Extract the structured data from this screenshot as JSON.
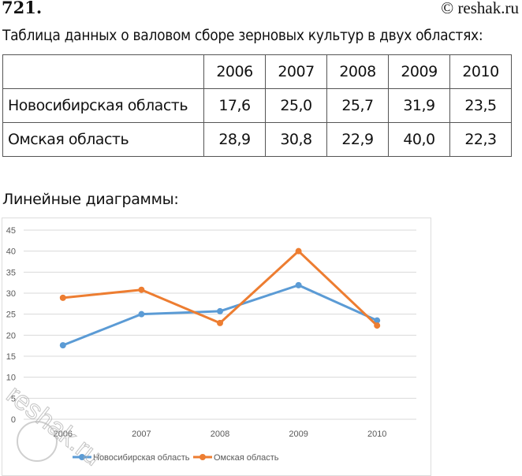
{
  "header": {
    "problem_number": "721",
    "copyright": "© reshak.ru"
  },
  "table_title": "Таблица данных о валовом сборе зерновых культур в двух областях:",
  "table": {
    "columns": [
      "2006",
      "2007",
      "2008",
      "2009",
      "2010"
    ],
    "rows": [
      {
        "label": "Новосибирская область",
        "values": [
          "17,6",
          "25,0",
          "25,7",
          "31,9",
          "23,5"
        ]
      },
      {
        "label": "Омская область",
        "values": [
          "28,9",
          "30,8",
          "22,9",
          "40,0",
          "22,3"
        ]
      }
    ]
  },
  "chart_heading": "Линейные диаграммы:",
  "chart_data": {
    "type": "line",
    "categories": [
      "2006",
      "2007",
      "2008",
      "2009",
      "2010"
    ],
    "series": [
      {
        "name": "Новосибирская область",
        "values": [
          17.6,
          25.0,
          25.7,
          31.9,
          23.5
        ],
        "color": "#5b9bd5"
      },
      {
        "name": "Омская область",
        "values": [
          28.9,
          30.8,
          22.9,
          40.0,
          22.3
        ],
        "color": "#ed7d31"
      }
    ],
    "ylim": [
      0,
      45
    ],
    "yticks": [
      "0",
      "5",
      "10",
      "15",
      "20",
      "25",
      "30",
      "35",
      "40",
      "45"
    ],
    "grid": true,
    "legend": "bottom",
    "xlabel": "",
    "ylabel": "",
    "title": ""
  },
  "watermark": "reshak.ru"
}
